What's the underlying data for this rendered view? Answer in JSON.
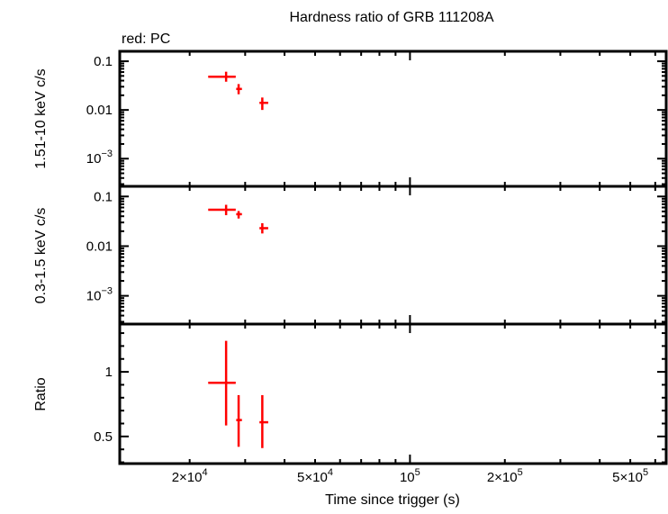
{
  "chart_data": [
    {
      "type": "scatter",
      "title": "Hardness ratio of GRB 111208A",
      "subtitle": "red: PC",
      "ylabel": "1.51-10 keV c/s",
      "xscale": "log",
      "yscale": "log",
      "xlim": [
        12000,
        650000
      ],
      "ylim": [
        0.00027,
        0.16
      ],
      "ytick_labels": [
        "0.1",
        "0.01",
        "10^-3"
      ],
      "ytick_values": [
        0.1,
        0.01,
        0.001
      ],
      "series": [
        {
          "color": "#ff0000",
          "points": [
            {
              "x": 26100,
              "xlo": 22900,
              "xhi": 28000,
              "y": 0.048,
              "ylo": 0.038,
              "yhi": 0.061
            },
            {
              "x": 28600,
              "xlo": 28100,
              "xhi": 29300,
              "y": 0.027,
              "ylo": 0.021,
              "yhi": 0.034
            },
            {
              "x": 34000,
              "xlo": 33300,
              "xhi": 35500,
              "y": 0.014,
              "ylo": 0.01,
              "yhi": 0.018
            }
          ]
        }
      ]
    },
    {
      "type": "scatter",
      "ylabel": "0.3-1.5 keV c/s",
      "xscale": "log",
      "yscale": "log",
      "xlim": [
        12000,
        650000
      ],
      "ylim": [
        0.00027,
        0.16
      ],
      "ytick_labels": [
        "0.1",
        "0.01",
        "10^-3"
      ],
      "ytick_values": [
        0.1,
        0.01,
        0.001
      ],
      "series": [
        {
          "color": "#ff0000",
          "points": [
            {
              "x": 26100,
              "xlo": 22900,
              "xhi": 28000,
              "y": 0.054,
              "ylo": 0.042,
              "yhi": 0.068
            },
            {
              "x": 28600,
              "xlo": 28100,
              "xhi": 29300,
              "y": 0.044,
              "ylo": 0.036,
              "yhi": 0.051
            },
            {
              "x": 34000,
              "xlo": 33300,
              "xhi": 35500,
              "y": 0.023,
              "ylo": 0.018,
              "yhi": 0.029
            }
          ]
        }
      ]
    },
    {
      "type": "scatter",
      "ylabel": "Ratio",
      "xlabel": "Time since trigger (s)",
      "xscale": "log",
      "yscale": "linear",
      "xlim": [
        12000,
        650000
      ],
      "ylim": [
        0.29,
        1.37
      ],
      "ytick_labels": [
        "1",
        "0.5"
      ],
      "ytick_values": [
        1,
        0.5
      ],
      "xtick_labels": [
        "2×10^4",
        "5×10^4",
        "10^5",
        "2×10^5",
        "5×10^5"
      ],
      "xtick_values": [
        20000,
        50000,
        100000,
        200000,
        500000
      ],
      "series": [
        {
          "color": "#ff0000",
          "points": [
            {
              "x": 26100,
              "xlo": 22900,
              "xhi": 28000,
              "y": 0.915,
              "ylo": 0.585,
              "yhi": 1.24
            },
            {
              "x": 28600,
              "xlo": 28100,
              "xhi": 29300,
              "y": 0.627,
              "ylo": 0.42,
              "yhi": 0.82
            },
            {
              "x": 34000,
              "xlo": 33300,
              "xhi": 35500,
              "y": 0.61,
              "ylo": 0.41,
              "yhi": 0.82
            }
          ]
        }
      ]
    }
  ]
}
